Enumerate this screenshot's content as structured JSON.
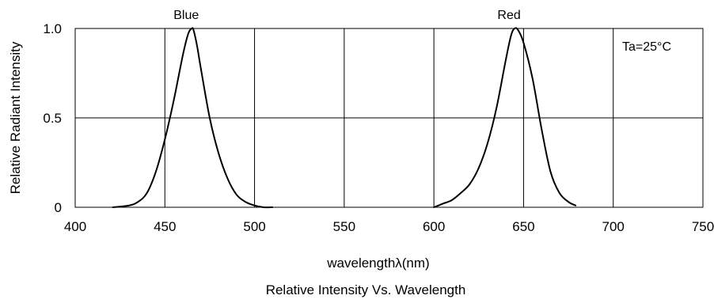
{
  "chart_data": {
    "type": "line",
    "title": "Relative Intensity Vs. Wavelength",
    "xlabel": "wavelengthλ(nm)",
    "ylabel": "Relative Radiant Intensity",
    "xlim": [
      400,
      750
    ],
    "ylim": [
      0,
      1.0
    ],
    "x_ticks": [
      400,
      450,
      500,
      550,
      600,
      650,
      700,
      750
    ],
    "x_tick_labels": [
      "400",
      "450",
      "500",
      "550",
      "600",
      "650",
      "700",
      "750"
    ],
    "y_ticks": [
      0,
      0.5,
      1.0
    ],
    "y_tick_labels": [
      "0",
      "0.5",
      "1.0"
    ],
    "grid": true,
    "annotation": "Ta=25°C",
    "series": [
      {
        "name": "Blue",
        "x": [
          421,
          430,
          435,
          440,
          445,
          450,
          455,
          460,
          463,
          465,
          466,
          468,
          470,
          475,
          480,
          485,
          490,
          495,
          500,
          505,
          510
        ],
        "y": [
          0.0,
          0.01,
          0.03,
          0.08,
          0.2,
          0.38,
          0.6,
          0.85,
          0.97,
          1.0,
          0.99,
          0.9,
          0.78,
          0.5,
          0.3,
          0.16,
          0.07,
          0.03,
          0.01,
          0.0,
          0.0
        ],
        "color": "#000000"
      },
      {
        "name": "Red",
        "x": [
          600,
          605,
          610,
          615,
          620,
          625,
          630,
          635,
          640,
          643,
          645,
          647,
          650,
          655,
          660,
          665,
          670,
          675,
          679
        ],
        "y": [
          0.0,
          0.02,
          0.04,
          0.08,
          0.13,
          0.22,
          0.36,
          0.56,
          0.82,
          0.96,
          1.0,
          0.99,
          0.92,
          0.72,
          0.44,
          0.2,
          0.08,
          0.03,
          0.01
        ],
        "color": "#000000"
      }
    ]
  }
}
